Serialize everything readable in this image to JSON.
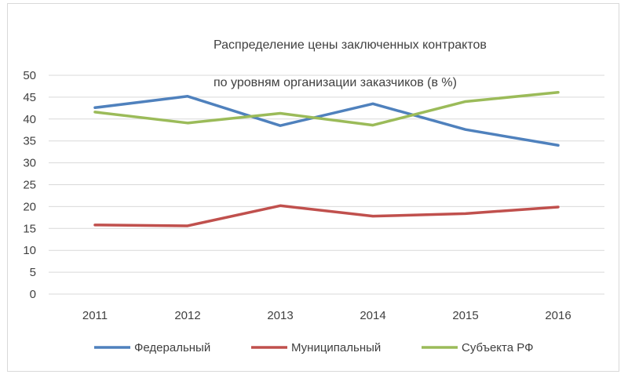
{
  "chart_data": {
    "type": "line",
    "title_line1": "Распределение цены заключенных контрактов",
    "title_line2": "по уровням организации заказчиков (в %)",
    "xlabel": "",
    "ylabel": "",
    "categories": [
      "2011",
      "2012",
      "2013",
      "2014",
      "2015",
      "2016"
    ],
    "ylim": [
      0,
      50
    ],
    "yticks": [
      "0",
      "5",
      "10",
      "15",
      "20",
      "25",
      "30",
      "35",
      "40",
      "45",
      "50"
    ],
    "grid": true,
    "legend_position": "bottom",
    "series": [
      {
        "name": "Федеральный",
        "color": "#4f81bd",
        "values": [
          42.6,
          45.2,
          38.5,
          43.5,
          37.6,
          34.0
        ]
      },
      {
        "name": "Муниципальный",
        "color": "#c0504d",
        "values": [
          15.8,
          15.6,
          20.2,
          17.8,
          18.4,
          19.9
        ]
      },
      {
        "name": "Субъекта РФ",
        "color": "#9bbb59",
        "values": [
          41.6,
          39.1,
          41.3,
          38.6,
          44.0,
          46.1
        ]
      }
    ]
  }
}
